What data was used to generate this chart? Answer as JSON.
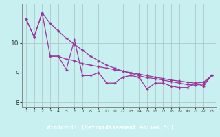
{
  "xlabel": "Windchill (Refroidissement éolien,°C)",
  "background_color": "#c8f0f0",
  "line_color": "#993399",
  "grid_color": "#b0c8c8",
  "axis_label_bg": "#7b5fb5",
  "axis_label_color": "#ffffff",
  "x_values": [
    0,
    1,
    2,
    3,
    4,
    5,
    6,
    7,
    8,
    9,
    10,
    11,
    12,
    13,
    14,
    15,
    16,
    17,
    18,
    19,
    20,
    21,
    22,
    23
  ],
  "y_top": [
    10.8,
    10.2,
    11.0,
    10.65,
    10.4,
    10.15,
    9.95,
    9.75,
    9.55,
    9.4,
    9.25,
    9.15,
    9.05,
    8.98,
    8.9,
    8.83,
    8.8,
    8.75,
    8.7,
    8.65,
    8.6,
    8.58,
    8.62,
    8.9
  ],
  "y_mid": [
    10.8,
    10.2,
    11.0,
    9.55,
    9.55,
    9.1,
    10.1,
    8.9,
    8.9,
    9.0,
    8.65,
    8.65,
    8.85,
    8.9,
    8.85,
    8.45,
    8.65,
    8.65,
    8.55,
    8.5,
    8.5,
    8.65,
    8.55,
    8.9
  ],
  "y_bot": [
    null,
    null,
    null,
    9.55,
    9.55,
    9.45,
    9.4,
    9.3,
    9.25,
    9.2,
    9.15,
    9.1,
    9.05,
    9.0,
    8.95,
    8.9,
    8.85,
    8.8,
    8.75,
    8.72,
    8.68,
    8.65,
    8.68,
    8.9
  ],
  "ylim": [
    7.85,
    11.3
  ],
  "xlim": [
    -0.5,
    23.5
  ],
  "yticks": [
    8,
    9,
    10
  ],
  "xticks": [
    0,
    1,
    2,
    3,
    4,
    5,
    6,
    7,
    8,
    9,
    10,
    11,
    12,
    13,
    14,
    15,
    16,
    17,
    18,
    19,
    20,
    21,
    22,
    23
  ]
}
